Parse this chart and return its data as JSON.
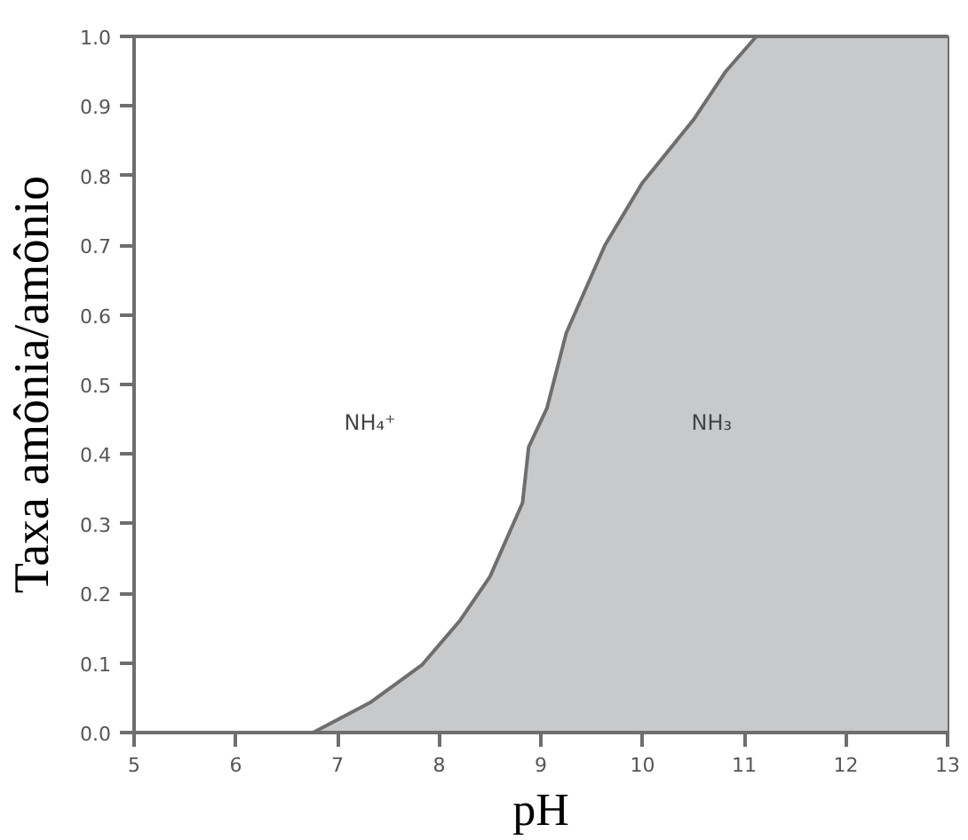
{
  "chart_data": {
    "type": "area",
    "xlabel": "pH",
    "ylabel": "Taxa amônia/amônio",
    "x": [
      6.76,
      7.32,
      7.83,
      8.2,
      8.5,
      8.82,
      8.88,
      9.06,
      9.25,
      9.63,
      10.0,
      10.5,
      10.82,
      11.12,
      13
    ],
    "series": [
      {
        "color": "#c8c9cb",
        "values": [
          0,
          0.043,
          0.097,
          0.16,
          0.224,
          0.33,
          0.41,
          0.466,
          0.574,
          0.7,
          0.79,
          0.88,
          0.95,
          1.0,
          1.0
        ]
      }
    ],
    "xlim": [
      5,
      13
    ],
    "ylim": [
      0,
      1
    ],
    "xticks": [
      5,
      6,
      7,
      8,
      9,
      10,
      11,
      12,
      13
    ],
    "yticks": [
      {
        "value": 0,
        "label": "0.0"
      },
      0.1,
      0.2,
      0.3,
      0.4,
      0.5,
      0.6,
      0.7,
      0.8,
      0.9,
      {
        "value": 1,
        "label": "1.0"
      }
    ],
    "annotations": [
      "NH₄⁺",
      "NH₃"
    ],
    "grid": false
  }
}
